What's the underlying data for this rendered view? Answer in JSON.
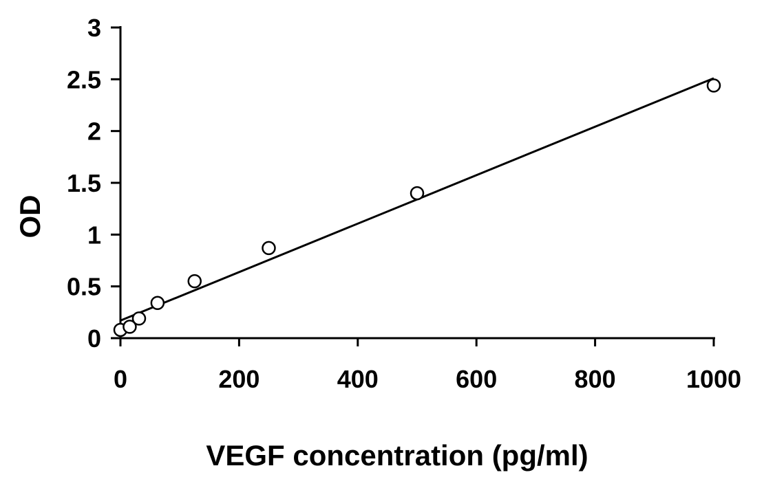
{
  "chart_data": {
    "type": "scatter",
    "xlabel": "VEGF concentration (pg/ml)",
    "ylabel": "OD",
    "xlim": [
      0,
      1000
    ],
    "ylim": [
      0,
      3
    ],
    "x_ticks": [
      "0",
      "200",
      "400",
      "600",
      "800",
      "1000"
    ],
    "y_ticks": [
      "0",
      "0.5",
      "1",
      "1.5",
      "2",
      "2.5",
      "3"
    ],
    "grid": false,
    "legend": "none",
    "marker": "open-circle",
    "series": [
      {
        "points": [
          {
            "x": 0,
            "y": 0.08
          },
          {
            "x": 15.6,
            "y": 0.11
          },
          {
            "x": 31.3,
            "y": 0.19
          },
          {
            "x": 62.5,
            "y": 0.34
          },
          {
            "x": 125,
            "y": 0.55
          },
          {
            "x": 250,
            "y": 0.87
          },
          {
            "x": 500,
            "y": 1.4
          },
          {
            "x": 1000,
            "y": 2.44
          }
        ]
      }
    ],
    "trendline": {
      "type": "linear",
      "x_start": 0,
      "y_start": 0.17,
      "x_end": 1000,
      "y_end": 2.51
    },
    "colors": {
      "axis": "#000000",
      "marker_fill": "#ffffff",
      "marker_stroke": "#000000",
      "line": "#000000"
    }
  }
}
